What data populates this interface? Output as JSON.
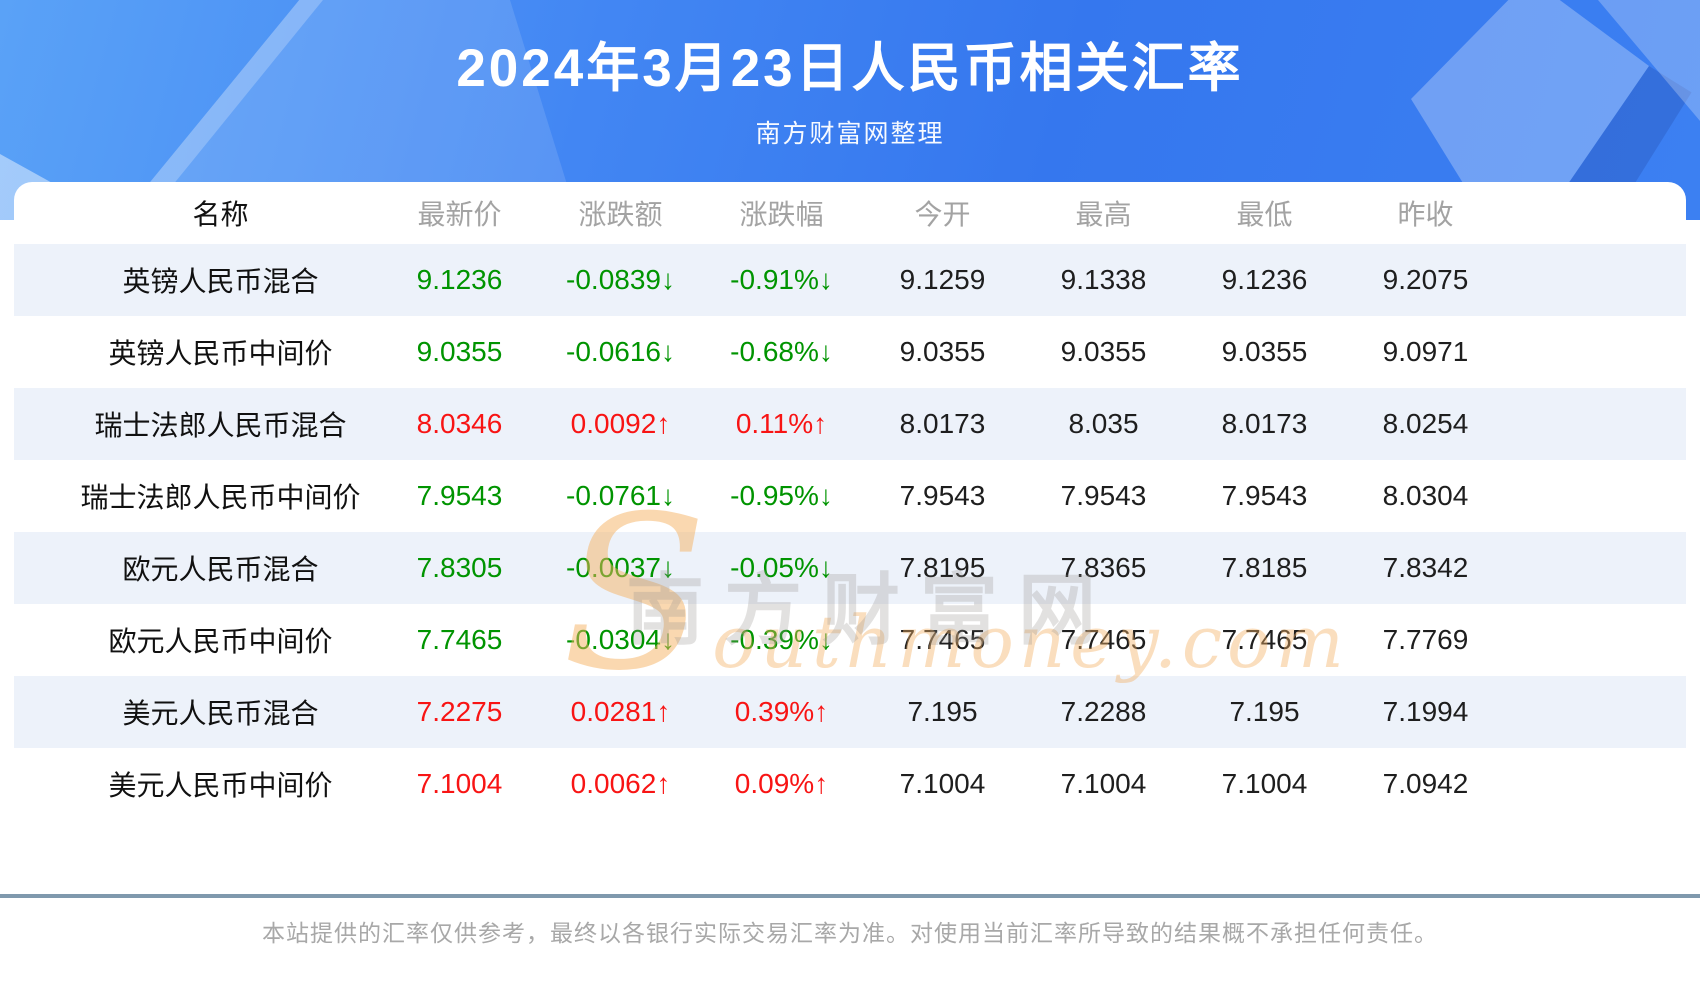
{
  "header": {
    "title": "2024年3月23日人民币相关汇率",
    "subtitle": "南方财富网整理"
  },
  "watermark": {
    "cn": "南方财富网",
    "en": "Southmoney.com"
  },
  "table": {
    "columns": [
      "名称",
      "最新价",
      "涨跌额",
      "涨跌幅",
      "今开",
      "最高",
      "最低",
      "昨收"
    ],
    "rows": [
      {
        "name": "英镑人民币混合",
        "latest": "9.1236",
        "change": "-0.0839↓",
        "pct": "-0.91%↓",
        "open": "9.1259",
        "high": "9.1338",
        "low": "9.1236",
        "prev": "9.2075",
        "trend": "down"
      },
      {
        "name": "英镑人民币中间价",
        "latest": "9.0355",
        "change": "-0.0616↓",
        "pct": "-0.68%↓",
        "open": "9.0355",
        "high": "9.0355",
        "low": "9.0355",
        "prev": "9.0971",
        "trend": "down"
      },
      {
        "name": "瑞士法郎人民币混合",
        "latest": "8.0346",
        "change": "0.0092↑",
        "pct": "0.11%↑",
        "open": "8.0173",
        "high": "8.035",
        "low": "8.0173",
        "prev": "8.0254",
        "trend": "up"
      },
      {
        "name": "瑞士法郎人民币中间价",
        "latest": "7.9543",
        "change": "-0.0761↓",
        "pct": "-0.95%↓",
        "open": "7.9543",
        "high": "7.9543",
        "low": "7.9543",
        "prev": "8.0304",
        "trend": "down"
      },
      {
        "name": "欧元人民币混合",
        "latest": "7.8305",
        "change": "-0.0037↓",
        "pct": "-0.05%↓",
        "open": "7.8195",
        "high": "7.8365",
        "low": "7.8185",
        "prev": "7.8342",
        "trend": "down"
      },
      {
        "name": "欧元人民币中间价",
        "latest": "7.7465",
        "change": "-0.0304↓",
        "pct": "-0.39%↓",
        "open": "7.7465",
        "high": "7.7465",
        "low": "7.7465",
        "prev": "7.7769",
        "trend": "down"
      },
      {
        "name": "美元人民币混合",
        "latest": "7.2275",
        "change": "0.0281↑",
        "pct": "0.39%↑",
        "open": "7.195",
        "high": "7.2288",
        "low": "7.195",
        "prev": "7.1994",
        "trend": "up"
      },
      {
        "name": "美元人民币中间价",
        "latest": "7.1004",
        "change": "0.0062↑",
        "pct": "0.09%↑",
        "open": "7.1004",
        "high": "7.1004",
        "low": "7.1004",
        "prev": "7.0942",
        "trend": "up"
      }
    ]
  },
  "footer": {
    "disclaimer": "本站提供的汇率仅供参考，最终以各银行实际交易汇率为准。对使用当前汇率所导致的结果概不承担任何责任。"
  },
  "colors": {
    "up": "#f81414",
    "down": "#009400",
    "stripe": "#edf2fa",
    "divider": "#7f99ad",
    "hero_blue_start": "#5aa2f7",
    "hero_blue_end": "#3577ee"
  }
}
